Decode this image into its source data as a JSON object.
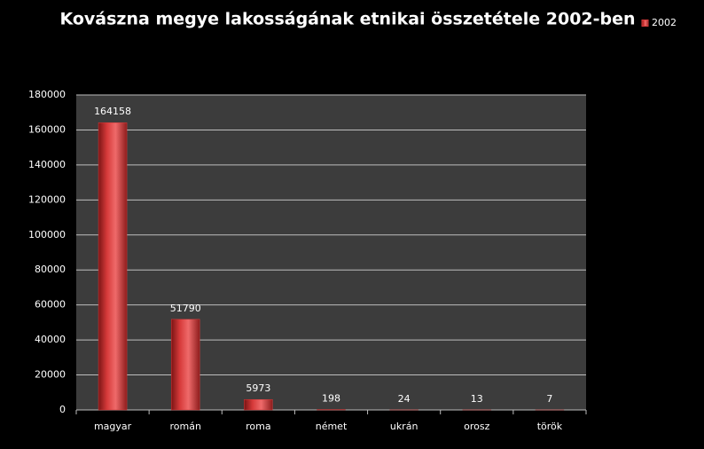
{
  "chart_data": {
    "type": "bar",
    "title": "Kovászna megye lakosságának etnikai összetétele 2002-ben",
    "categories": [
      "magyar",
      "román",
      "roma",
      "német",
      "ukrán",
      "orosz",
      "török"
    ],
    "series": [
      {
        "name": "2002",
        "color": "#d63a3a",
        "values": [
          164158,
          51790,
          5973,
          198,
          24,
          13,
          7
        ]
      }
    ],
    "ylim": [
      0,
      180000
    ],
    "yticks": [
      0,
      20000,
      40000,
      60000,
      80000,
      100000,
      120000,
      140000,
      160000,
      180000
    ],
    "grid": true,
    "legend": "top-right"
  }
}
